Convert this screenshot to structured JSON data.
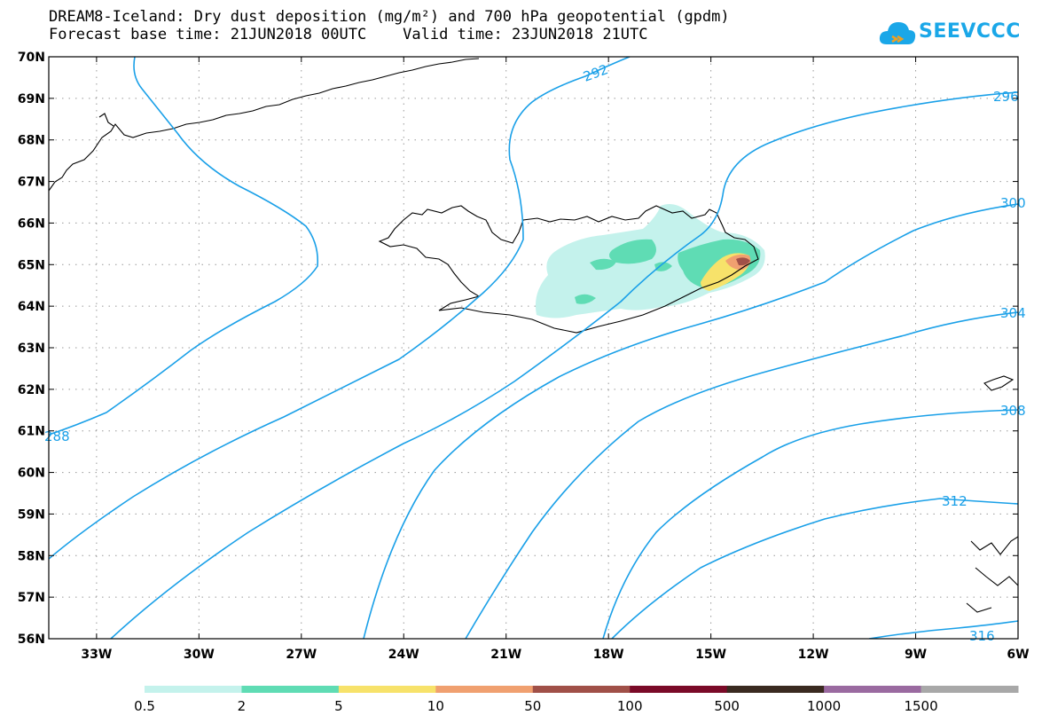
{
  "title": {
    "line1": "DREAM8-Iceland: Dry dust deposition (mg/m²) and 700 hPa geopotential (gpdm)",
    "line2": "Forecast base time: 21JUN2018 00UTC    Valid time: 23JUN2018 21UTC"
  },
  "logo": {
    "text": "SEEVCCC",
    "icon": "cloud-icon"
  },
  "map": {
    "lat_labels": [
      "70N",
      "69N",
      "68N",
      "67N",
      "66N",
      "65N",
      "64N",
      "63N",
      "62N",
      "61N",
      "60N",
      "59N",
      "58N",
      "57N",
      "56N"
    ],
    "lon_labels": [
      "33W",
      "30W",
      "27W",
      "24W",
      "21W",
      "18W",
      "15W",
      "12W",
      "9W",
      "6W"
    ],
    "lat_range": [
      56,
      70
    ],
    "lon_range": [
      -34.4,
      -6
    ],
    "grid": "dotted"
  },
  "contours": {
    "color": "#1aa0e8",
    "labels": [
      {
        "text": "292"
      },
      {
        "text": "296"
      },
      {
        "text": "300"
      },
      {
        "text": "304"
      },
      {
        "text": "308"
      },
      {
        "text": "288"
      },
      {
        "text": "312"
      },
      {
        "text": "316"
      }
    ]
  },
  "colorbar": {
    "labels": [
      "0.5",
      "2",
      "5",
      "10",
      "50",
      "100",
      "500",
      "1000",
      "1500"
    ],
    "colors": [
      "#c4f2ec",
      "#5fdcb4",
      "#f7e26a",
      "#f0a070",
      "#a05048",
      "#7a0a28",
      "#3a2a20",
      "#9a6aa0",
      "#a8a8a8"
    ]
  }
}
